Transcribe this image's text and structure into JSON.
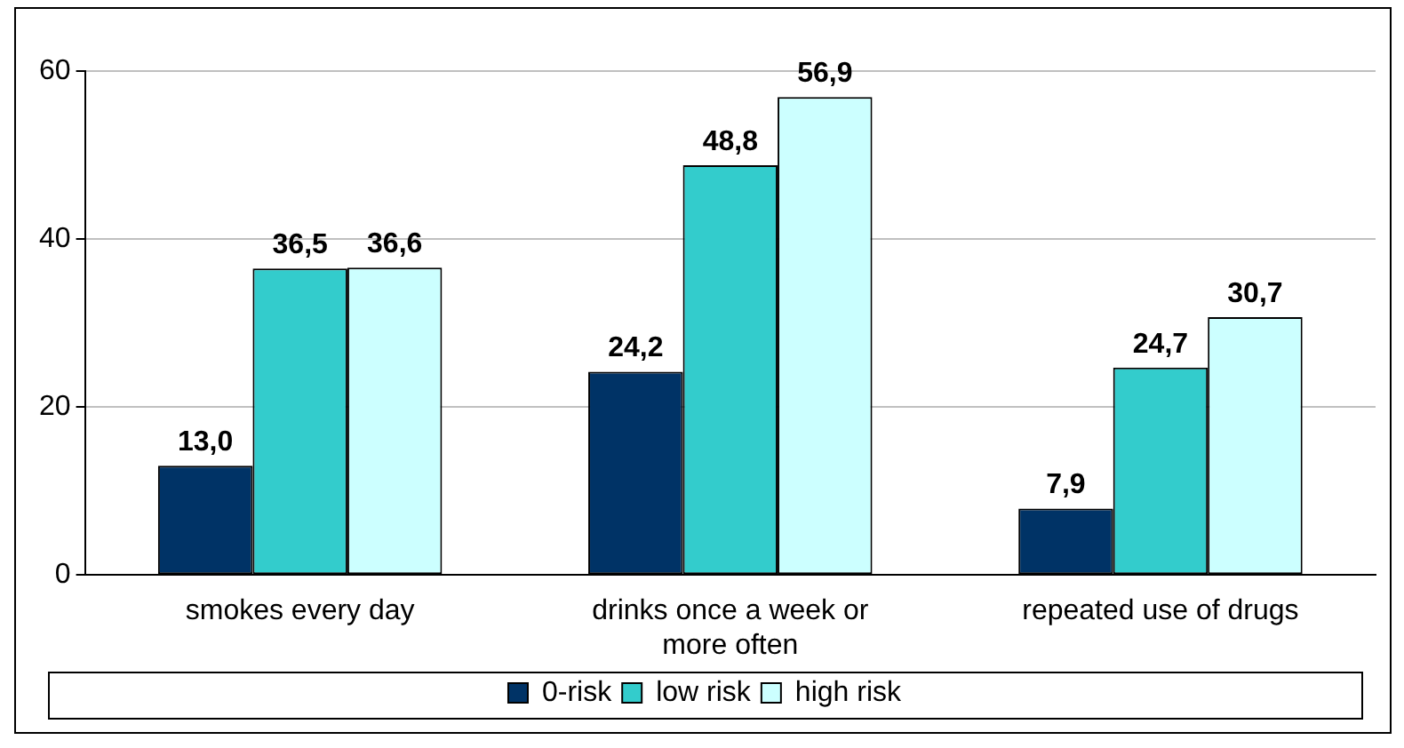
{
  "chart_data": {
    "type": "bar",
    "categories": [
      "smokes every day",
      "drinks once a week or more often",
      "repeated use of drugs"
    ],
    "series": [
      {
        "name": "0-risk",
        "color": "#003366",
        "values": [
          13.0,
          24.2,
          7.9
        ],
        "value_labels": [
          "13,0",
          "24,2",
          "7,9"
        ]
      },
      {
        "name": "low risk",
        "color": "#33cccc",
        "values": [
          36.5,
          48.8,
          24.7
        ],
        "value_labels": [
          "36,5",
          "48,8",
          "24,7"
        ]
      },
      {
        "name": "high risk",
        "color": "#ccffff",
        "values": [
          36.6,
          56.9,
          30.7
        ],
        "value_labels": [
          "36,6",
          "56,9",
          "30,7"
        ]
      }
    ],
    "ylim": [
      0,
      60
    ],
    "yticks": [
      0,
      20,
      40,
      60
    ],
    "grid": "y",
    "legend": "bottom"
  }
}
